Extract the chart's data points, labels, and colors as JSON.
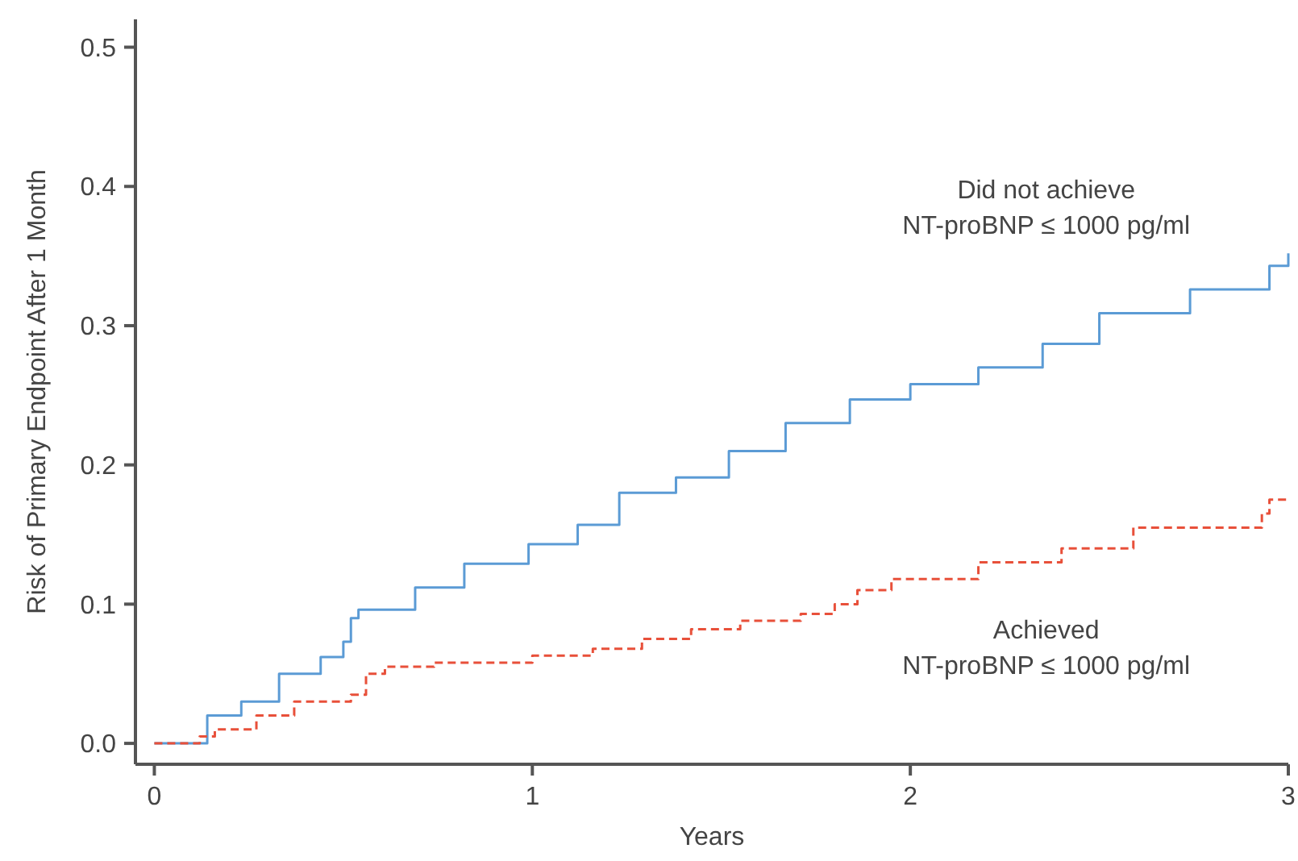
{
  "chart_data": {
    "type": "step",
    "xlabel": "Years",
    "ylabel": "Risk of Primary Endpoint After 1 Month",
    "xlim": [
      -0.05,
      3
    ],
    "ylim": [
      -0.015,
      0.52
    ],
    "xticks": [
      0,
      1,
      2,
      3
    ],
    "yticks": [
      {
        "value": 0,
        "label": "0.0"
      },
      0.1,
      0.2,
      0.3,
      0.4,
      0.5
    ],
    "grid": false,
    "legend": false,
    "series": [
      {
        "name": "Did not achieve\nNT-proBNP ≤ 1000 pg/ml",
        "color": "#5b9bd5",
        "line_style": "solid",
        "x": [
          0,
          0.14,
          0.23,
          0.33,
          0.44,
          0.5,
          0.52,
          0.54,
          0.69,
          0.82,
          0.99,
          1.12,
          1.23,
          1.38,
          1.52,
          1.67,
          1.84,
          2.0,
          2.18,
          2.35,
          2.5,
          2.74,
          2.95,
          3.0
        ],
        "values": [
          0,
          0.02,
          0.03,
          0.05,
          0.062,
          0.073,
          0.09,
          0.096,
          0.112,
          0.129,
          0.143,
          0.157,
          0.18,
          0.191,
          0.21,
          0.23,
          0.247,
          0.258,
          0.27,
          0.287,
          0.309,
          0.326,
          0.343,
          0.352
        ]
      },
      {
        "name": "Achieved\nNT-proBNP ≤ 1000 pg/ml",
        "color": "#e8503a",
        "line_style": "dashed",
        "x": [
          0,
          0.12,
          0.16,
          0.27,
          0.37,
          0.52,
          0.56,
          0.61,
          0.74,
          1.0,
          1.16,
          1.29,
          1.42,
          1.55,
          1.71,
          1.8,
          1.86,
          1.95,
          2.18,
          2.4,
          2.59,
          2.93,
          2.95,
          3.0
        ],
        "values": [
          0,
          0.005,
          0.01,
          0.02,
          0.03,
          0.035,
          0.05,
          0.055,
          0.058,
          0.063,
          0.068,
          0.075,
          0.082,
          0.088,
          0.093,
          0.1,
          0.11,
          0.118,
          0.13,
          0.14,
          0.155,
          0.165,
          0.175,
          0.175
        ]
      }
    ]
  }
}
